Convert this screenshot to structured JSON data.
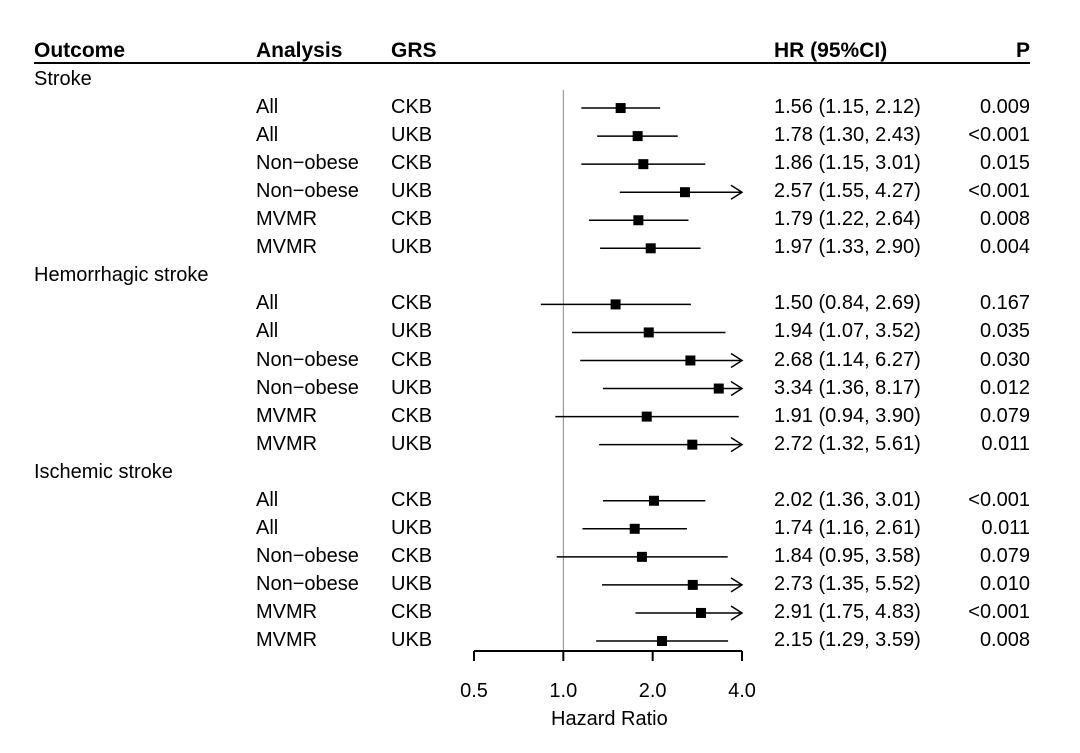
{
  "headers": {
    "outcome": "Outcome",
    "analysis": "Analysis",
    "grs": "GRS",
    "hr": "HR (95%CI)",
    "p": "P"
  },
  "chart_data": {
    "type": "forest",
    "xlabel": "Hazard Ratio",
    "x_scale": "log2",
    "xlim": [
      0.5,
      4.0
    ],
    "xticks": [
      0.5,
      1.0,
      2.0,
      4.0
    ],
    "xtick_labels": [
      "0.5",
      "1.0",
      "2.0",
      "4.0"
    ],
    "reference_line": 1.0,
    "groups": [
      {
        "outcome": "Stroke",
        "rows": [
          {
            "analysis": "All",
            "grs": "CKB",
            "hr": 1.56,
            "lo": 1.15,
            "hi": 2.12,
            "hr_text": "1.56 (1.15, 2.12)",
            "p": "0.009"
          },
          {
            "analysis": "All",
            "grs": "UKB",
            "hr": 1.78,
            "lo": 1.3,
            "hi": 2.43,
            "hr_text": "1.78 (1.30, 2.43)",
            "p": "<0.001"
          },
          {
            "analysis": "Non−obese",
            "grs": "CKB",
            "hr": 1.86,
            "lo": 1.15,
            "hi": 3.01,
            "hr_text": "1.86 (1.15, 3.01)",
            "p": "0.015"
          },
          {
            "analysis": "Non−obese",
            "grs": "UKB",
            "hr": 2.57,
            "lo": 1.55,
            "hi": 4.27,
            "hr_text": "2.57 (1.55, 4.27)",
            "p": "<0.001"
          },
          {
            "analysis": "MVMR",
            "grs": "CKB",
            "hr": 1.79,
            "lo": 1.22,
            "hi": 2.64,
            "hr_text": "1.79 (1.22, 2.64)",
            "p": "0.008"
          },
          {
            "analysis": "MVMR",
            "grs": "UKB",
            "hr": 1.97,
            "lo": 1.33,
            "hi": 2.9,
            "hr_text": "1.97 (1.33, 2.90)",
            "p": "0.004"
          }
        ]
      },
      {
        "outcome": "Hemorrhagic stroke",
        "rows": [
          {
            "analysis": "All",
            "grs": "CKB",
            "hr": 1.5,
            "lo": 0.84,
            "hi": 2.69,
            "hr_text": "1.50 (0.84, 2.69)",
            "p": "0.167"
          },
          {
            "analysis": "All",
            "grs": "UKB",
            "hr": 1.94,
            "lo": 1.07,
            "hi": 3.52,
            "hr_text": "1.94 (1.07, 3.52)",
            "p": "0.035"
          },
          {
            "analysis": "Non−obese",
            "grs": "CKB",
            "hr": 2.68,
            "lo": 1.14,
            "hi": 6.27,
            "hr_text": "2.68 (1.14, 6.27)",
            "p": "0.030"
          },
          {
            "analysis": "Non−obese",
            "grs": "UKB",
            "hr": 3.34,
            "lo": 1.36,
            "hi": 8.17,
            "hr_text": "3.34 (1.36, 8.17)",
            "p": "0.012"
          },
          {
            "analysis": "MVMR",
            "grs": "CKB",
            "hr": 1.91,
            "lo": 0.94,
            "hi": 3.9,
            "hr_text": "1.91 (0.94, 3.90)",
            "p": "0.079"
          },
          {
            "analysis": "MVMR",
            "grs": "UKB",
            "hr": 2.72,
            "lo": 1.32,
            "hi": 5.61,
            "hr_text": "2.72 (1.32, 5.61)",
            "p": "0.011"
          }
        ]
      },
      {
        "outcome": "Ischemic stroke",
        "rows": [
          {
            "analysis": "All",
            "grs": "CKB",
            "hr": 2.02,
            "lo": 1.36,
            "hi": 3.01,
            "hr_text": "2.02 (1.36, 3.01)",
            "p": "<0.001"
          },
          {
            "analysis": "All",
            "grs": "UKB",
            "hr": 1.74,
            "lo": 1.16,
            "hi": 2.61,
            "hr_text": "1.74 (1.16, 2.61)",
            "p": "0.011"
          },
          {
            "analysis": "Non−obese",
            "grs": "CKB",
            "hr": 1.84,
            "lo": 0.95,
            "hi": 3.58,
            "hr_text": "1.84 (0.95, 3.58)",
            "p": "0.079"
          },
          {
            "analysis": "Non−obese",
            "grs": "UKB",
            "hr": 2.73,
            "lo": 1.35,
            "hi": 5.52,
            "hr_text": "2.73 (1.35, 5.52)",
            "p": "0.010"
          },
          {
            "analysis": "MVMR",
            "grs": "CKB",
            "hr": 2.91,
            "lo": 1.75,
            "hi": 4.83,
            "hr_text": "2.91 (1.75, 4.83)",
            "p": "<0.001"
          },
          {
            "analysis": "MVMR",
            "grs": "UKB",
            "hr": 2.15,
            "lo": 1.29,
            "hi": 3.59,
            "hr_text": "2.15 (1.29, 3.59)",
            "p": "0.008"
          }
        ]
      }
    ]
  }
}
